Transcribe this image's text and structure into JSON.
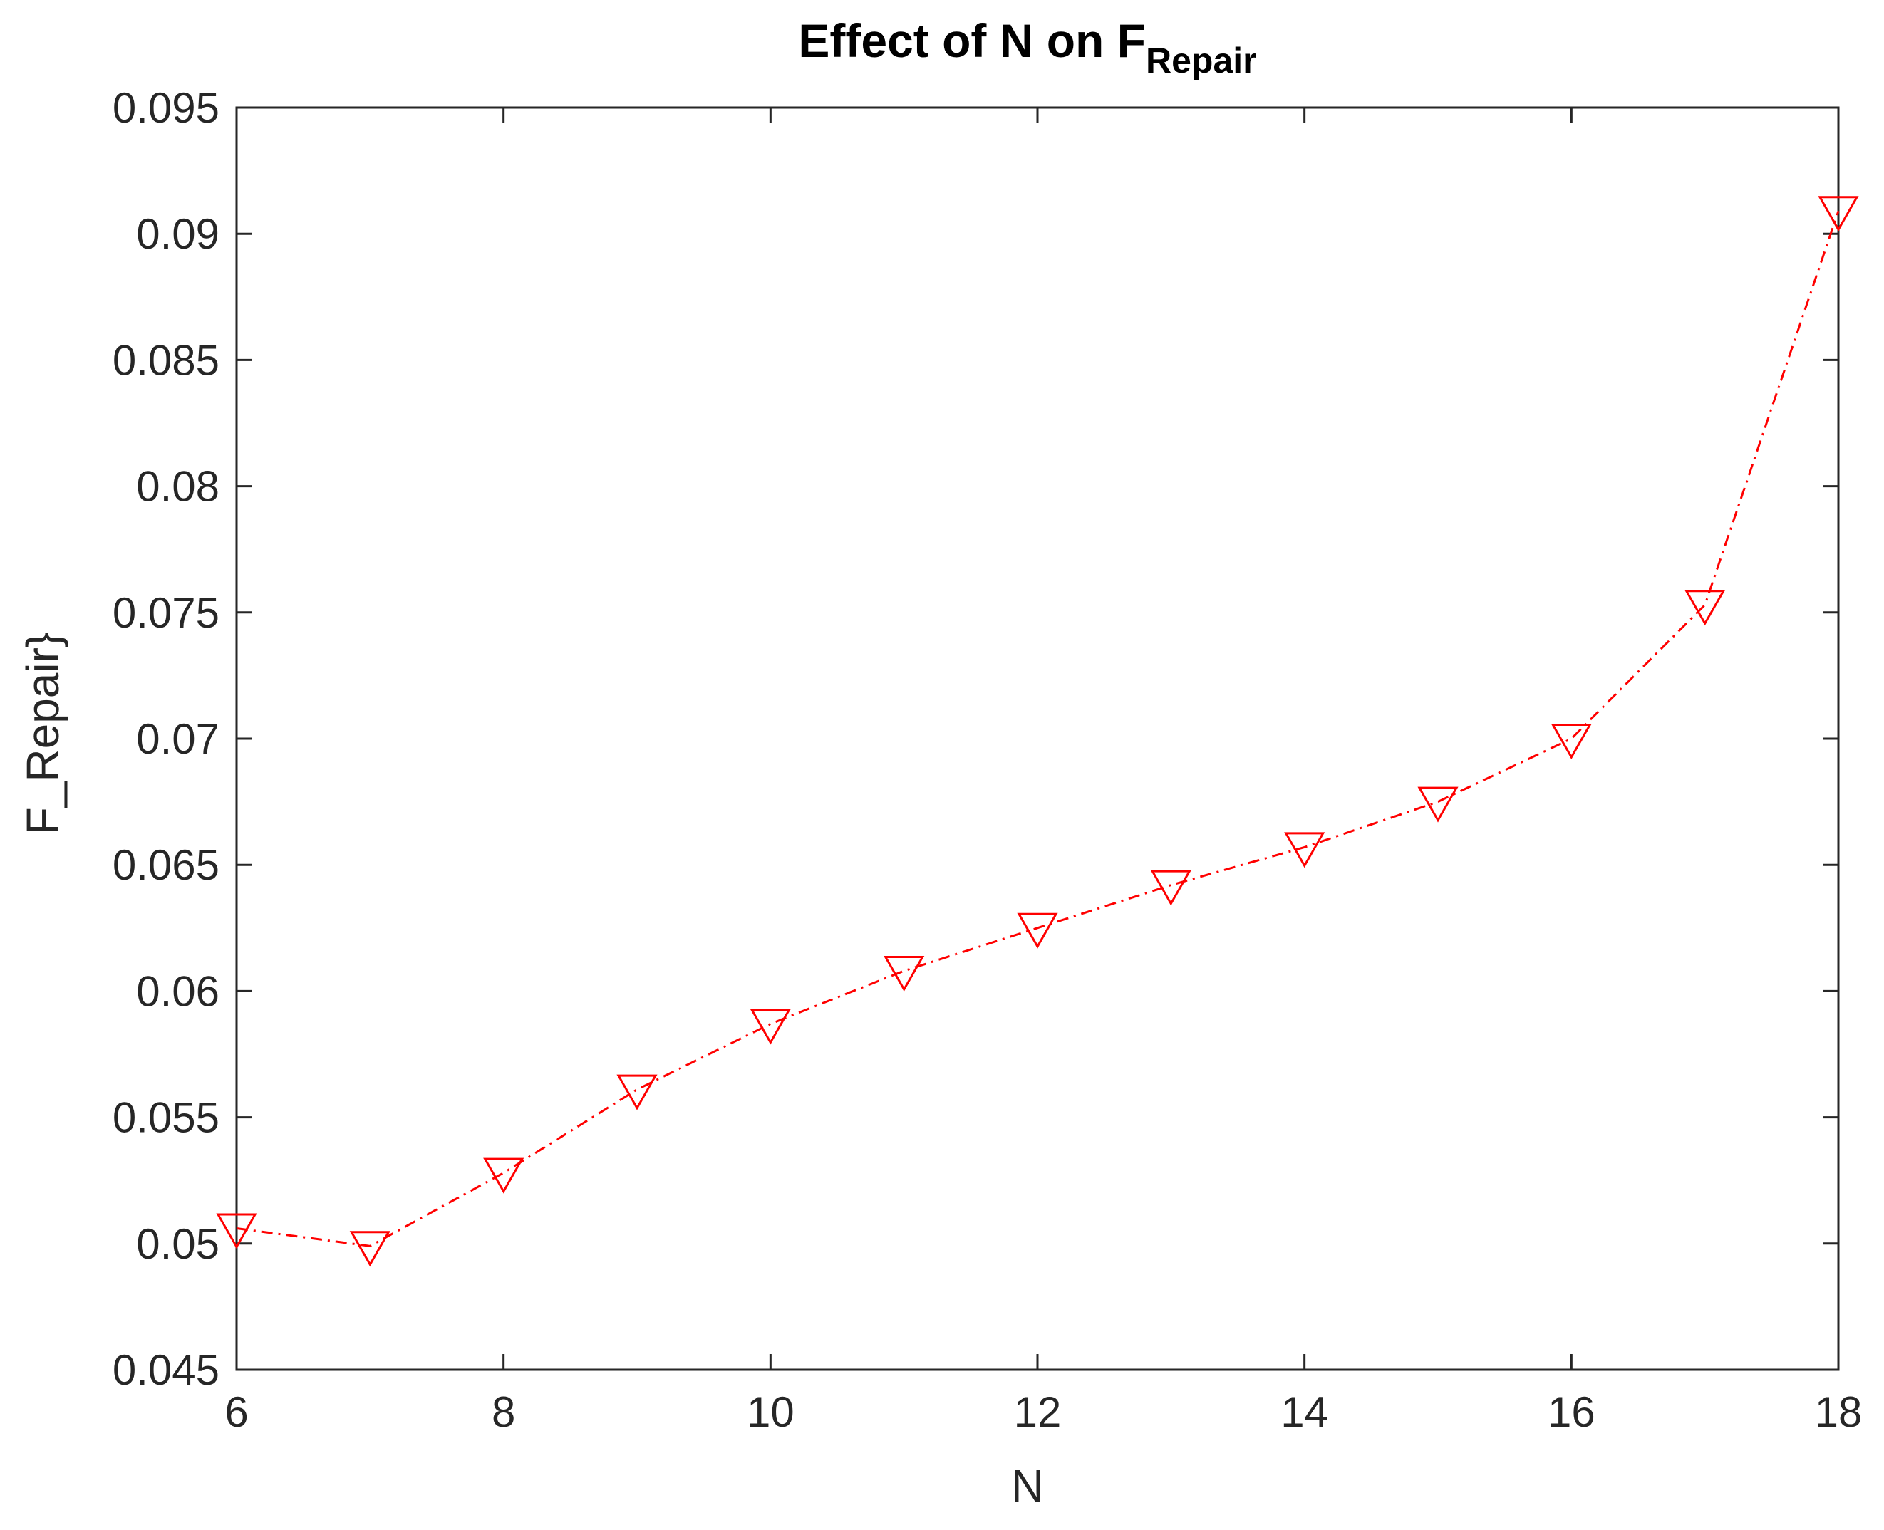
{
  "chart_data": {
    "type": "line",
    "title": "Effect of N on F",
    "title_subscript": "Repair",
    "xlabel": "N",
    "ylabel": "F_Repair}",
    "xlim": [
      6,
      18
    ],
    "ylim": [
      0.045,
      0.095
    ],
    "x_ticks": [
      6,
      8,
      10,
      12,
      14,
      16,
      18
    ],
    "x_tick_labels": [
      "6",
      "8",
      "10",
      "12",
      "14",
      "16",
      "18"
    ],
    "y_ticks": [
      0.045,
      0.05,
      0.055,
      0.06,
      0.065,
      0.07,
      0.075,
      0.08,
      0.085,
      0.09,
      0.095
    ],
    "y_tick_labels": [
      "0.045",
      "0.05",
      "0.055",
      "0.06",
      "0.065",
      "0.07",
      "0.075",
      "0.08",
      "0.085",
      "0.09",
      "0.095"
    ],
    "grid": false,
    "legend": false,
    "series": [
      {
        "color": "#ff0000",
        "line_style": "dash-dot",
        "marker": "triangle-down",
        "x": [
          6,
          7,
          8,
          9,
          10,
          11,
          12,
          13,
          14,
          15,
          16,
          17,
          18
        ],
        "y": [
          0.0506,
          0.0499,
          0.0528,
          0.0561,
          0.0587,
          0.0608,
          0.0625,
          0.0642,
          0.0657,
          0.0675,
          0.07,
          0.0753,
          0.0909
        ]
      }
    ]
  }
}
